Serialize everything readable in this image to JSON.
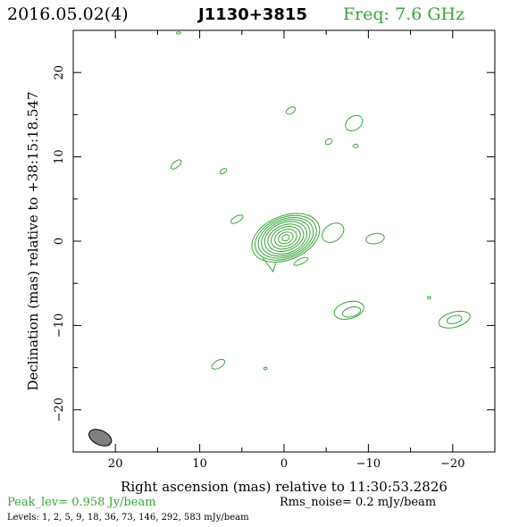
{
  "header": {
    "date": "2016.05.02(4)",
    "source": "J1130+3815",
    "freq": "Freq: 7.6 GHz"
  },
  "colors": {
    "contour": "#39a539",
    "header_freq": "#39a539",
    "text": "#000000",
    "beam_fill": "#808080",
    "peak_text": "#39a539"
  },
  "chart_data": {
    "type": "contour",
    "xlabel": "Right ascension (mas) relative to 11:30:53.2826",
    "ylabel": "Declination (mas) relative to +38:15:18.547",
    "xlim": [
      25,
      -25
    ],
    "ylim": [
      -25,
      25
    ],
    "x_ticks": [
      20,
      10,
      0,
      -10,
      -20
    ],
    "x_tick_labels": [
      "20",
      "10",
      "0",
      "−10",
      "−20"
    ],
    "y_ticks": [
      20,
      10,
      0,
      -10,
      -20
    ],
    "y_tick_labels": [
      "20",
      "10",
      "0",
      "−10",
      "−20"
    ],
    "beam": {
      "x": 21.8,
      "y": -23.3,
      "major": 3.0,
      "minor": 2.0,
      "pa_deg": 80
    },
    "core": {
      "x": -0.2,
      "y": 0.4,
      "contours": [
        {
          "rx": 4.2,
          "ry": 2.6,
          "angle": -22
        },
        {
          "rx": 3.8,
          "ry": 2.4,
          "angle": -22
        },
        {
          "rx": 3.4,
          "ry": 2.2,
          "angle": -22
        },
        {
          "rx": 3.0,
          "ry": 2.0,
          "angle": -22
        },
        {
          "rx": 2.6,
          "ry": 1.8,
          "angle": -22
        },
        {
          "rx": 2.2,
          "ry": 1.5,
          "angle": -22
        },
        {
          "rx": 1.8,
          "ry": 1.25,
          "angle": -22
        },
        {
          "rx": 1.35,
          "ry": 0.95,
          "angle": -22
        },
        {
          "rx": 0.9,
          "ry": 0.65,
          "angle": -22
        },
        {
          "rx": 0.45,
          "ry": 0.35,
          "angle": -22
        }
      ]
    },
    "components": [
      {
        "x": 12.5,
        "y": 24.7,
        "rx": 0.25,
        "ry": 0.12,
        "angle": 0
      },
      {
        "x": -0.8,
        "y": 15.5,
        "rx": 0.6,
        "ry": 0.35,
        "angle": -30
      },
      {
        "x": -8.3,
        "y": 14.0,
        "rx": 1.1,
        "ry": 0.8,
        "angle": -35
      },
      {
        "x": -5.3,
        "y": 11.8,
        "rx": 0.45,
        "ry": 0.3,
        "angle": -30
      },
      {
        "x": -8.5,
        "y": 11.3,
        "rx": 0.3,
        "ry": 0.2,
        "angle": 0
      },
      {
        "x": 12.8,
        "y": 9.1,
        "rx": 0.75,
        "ry": 0.35,
        "angle": -40
      },
      {
        "x": 7.2,
        "y": 8.3,
        "rx": 0.45,
        "ry": 0.25,
        "angle": -35
      },
      {
        "x": 5.6,
        "y": 2.6,
        "rx": 0.8,
        "ry": 0.35,
        "angle": -30
      },
      {
        "x": -5.8,
        "y": 1.0,
        "rx": 1.4,
        "ry": 1.0,
        "angle": -35
      },
      {
        "x": -10.8,
        "y": 0.3,
        "rx": 1.1,
        "ry": 0.6,
        "angle": -10
      },
      {
        "x": -2.0,
        "y": -2.4,
        "rx": 0.9,
        "ry": 0.3,
        "angle": -25
      },
      {
        "x": -7.7,
        "y": -8.2,
        "rx": 1.8,
        "ry": 1.0,
        "angle": -15
      },
      {
        "x": -8.0,
        "y": -8.4,
        "rx": 1.1,
        "ry": 0.55,
        "angle": -15
      },
      {
        "x": -17.2,
        "y": -6.7,
        "rx": 0.2,
        "ry": 0.15,
        "angle": 0
      },
      {
        "x": -20.2,
        "y": -9.3,
        "rx": 1.9,
        "ry": 0.9,
        "angle": -15
      },
      {
        "x": -20.2,
        "y": -9.3,
        "rx": 0.9,
        "ry": 0.45,
        "angle": -15
      },
      {
        "x": 7.8,
        "y": -14.6,
        "rx": 0.85,
        "ry": 0.45,
        "angle": -30
      },
      {
        "x": 2.2,
        "y": -15.1,
        "rx": 0.2,
        "ry": 0.15,
        "angle": 0
      }
    ]
  },
  "footer": {
    "peak": "Peak_lev=  0.958 Jy/beam",
    "rms": "Rms_noise=  0.2 mJy/beam",
    "levels": "Levels:   1,   2,   5,   9,   18,  36,  73, 146, 292, 583 mJy/beam"
  }
}
